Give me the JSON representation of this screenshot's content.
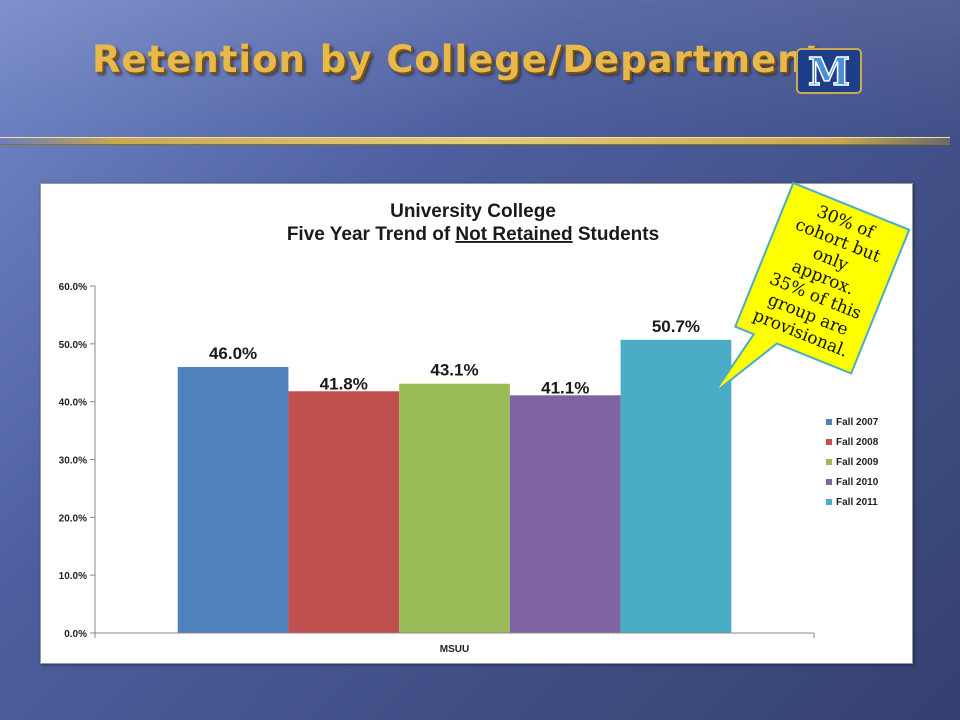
{
  "slide": {
    "title": "Retention by College/Department:",
    "logo_letter": "M"
  },
  "callout": {
    "lines": [
      "30% of",
      "cohort but",
      "only",
      "approx.",
      "35% of this",
      "group are",
      "provisional."
    ],
    "fill": "#ffff00"
  },
  "chart_data": {
    "type": "bar",
    "title": "University College",
    "subtitle_parts": [
      "Five Year Trend of ",
      "Not Retained",
      " Students"
    ],
    "categories": [
      "MSUU"
    ],
    "xlabel": "",
    "ylabel": "",
    "ylim": [
      0,
      60
    ],
    "yticks": [
      "0.0%",
      "10.0%",
      "20.0%",
      "30.0%",
      "40.0%",
      "50.0%",
      "60.0%"
    ],
    "grid": false,
    "legend_position": "right",
    "series": [
      {
        "name": "Fall 2007",
        "values": [
          46.0
        ],
        "label": "46.0%",
        "color": "#4f81bd"
      },
      {
        "name": "Fall 2008",
        "values": [
          41.8
        ],
        "label": "41.8%",
        "color": "#c0504d"
      },
      {
        "name": "Fall 2009",
        "values": [
          43.1
        ],
        "label": "43.1%",
        "color": "#9bbb59"
      },
      {
        "name": "Fall 2010",
        "values": [
          41.1
        ],
        "label": "41.1%",
        "color": "#8064a2"
      },
      {
        "name": "Fall 2011",
        "values": [
          50.7
        ],
        "label": "50.7%",
        "color": "#4bacc6"
      }
    ]
  }
}
